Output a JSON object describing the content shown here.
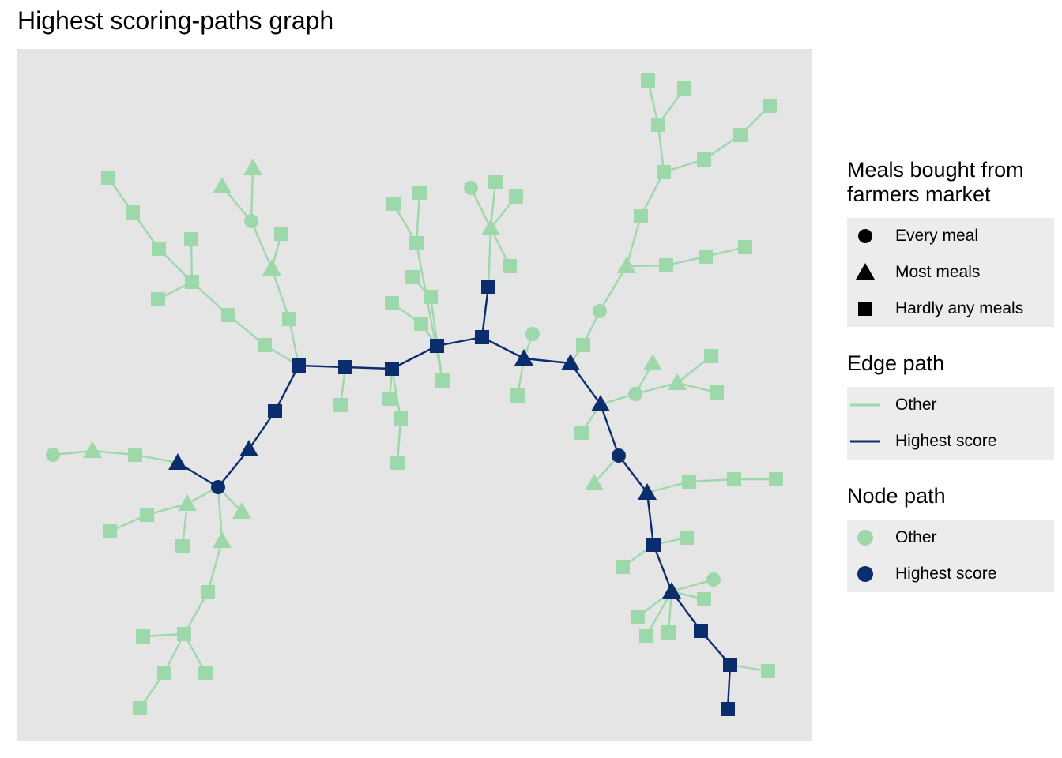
{
  "title": "Highest scoring-paths graph",
  "colors": {
    "other": "#9dd8ab",
    "highest": "#0c2d6d",
    "panel": "#e5e5e5",
    "legend_key_bg": "#ececec"
  },
  "legend": {
    "shape": {
      "title": "Meals bought from\nfarmers market",
      "items": [
        {
          "label": "Every meal",
          "shape": "circle"
        },
        {
          "label": "Most meals",
          "shape": "triangle"
        },
        {
          "label": "Hardly any meals",
          "shape": "square"
        }
      ]
    },
    "edge": {
      "title": "Edge path",
      "items": [
        {
          "label": "Other",
          "color": "#9dd8ab"
        },
        {
          "label": "Highest score",
          "color": "#0c2d6d"
        }
      ]
    },
    "node": {
      "title": "Node path",
      "items": [
        {
          "label": "Other",
          "color": "#9dd8ab"
        },
        {
          "label": "Highest score",
          "color": "#0c2d6d"
        }
      ]
    }
  }
}
